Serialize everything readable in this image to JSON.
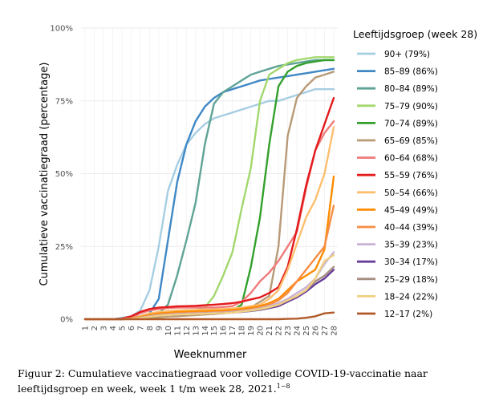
{
  "chart_data": {
    "type": "line",
    "ylabel": "Cumulatieve vaccinatiegraad (percentage)",
    "xlabel": "Weeknummer",
    "x": [
      1,
      2,
      3,
      4,
      5,
      6,
      7,
      8,
      9,
      10,
      11,
      12,
      13,
      14,
      15,
      16,
      17,
      18,
      19,
      20,
      21,
      22,
      23,
      24,
      25,
      26,
      27,
      28
    ],
    "ylim": [
      0,
      100
    ],
    "yticks": [
      0,
      25,
      50,
      75,
      100
    ],
    "ytick_labels": [
      "0%",
      "25%",
      "50%",
      "75%",
      "100%"
    ],
    "grid": true,
    "legend_title": "Leeftijdsgroep (week 28)",
    "legend_position": "right",
    "series": [
      {
        "name": "90+ (79%)",
        "color": "#a6cee3",
        "values": [
          0,
          0,
          0,
          0,
          0.5,
          1,
          3,
          10,
          25,
          44,
          53,
          60,
          64,
          67,
          69,
          70,
          71,
          72,
          73,
          74,
          75,
          75,
          76,
          77,
          78,
          79,
          79,
          79
        ]
      },
      {
        "name": "85–89 (86%)",
        "color": "#3f88c5",
        "values": [
          0,
          0,
          0,
          0,
          0.3,
          0.5,
          1,
          2,
          7,
          27,
          47,
          60,
          68,
          73,
          76,
          78,
          79,
          80,
          81,
          82,
          82.5,
          83,
          83.5,
          84,
          84.5,
          85,
          85.5,
          86
        ]
      },
      {
        "name": "80–84 (89%)",
        "color": "#5fa397",
        "values": [
          0,
          0,
          0,
          0,
          0.2,
          0.3,
          0.5,
          1,
          2,
          5,
          15,
          27,
          40,
          60,
          74,
          78,
          80,
          82,
          84,
          85,
          86,
          87,
          87.5,
          88,
          88.5,
          89,
          89,
          89
        ]
      },
      {
        "name": "75–79 (90%)",
        "color": "#a3d86e",
        "values": [
          0,
          0,
          0,
          0,
          0,
          0.2,
          0.3,
          0.5,
          0.8,
          1,
          1.5,
          2,
          3,
          4,
          8,
          15,
          23,
          38,
          52,
          75,
          84,
          86,
          88,
          89,
          89.5,
          90,
          90,
          90
        ]
      },
      {
        "name": "70–74 (89%)",
        "color": "#33a02c",
        "values": [
          0,
          0,
          0,
          0,
          0,
          0.2,
          0.3,
          0.5,
          0.7,
          1,
          1.2,
          1.4,
          1.6,
          1.8,
          2,
          2.5,
          3,
          5,
          18,
          35,
          60,
          80,
          85,
          87,
          88,
          88.5,
          89,
          89
        ]
      },
      {
        "name": "65–69 (85%)",
        "color": "#b89a76",
        "values": [
          0,
          0,
          0,
          0,
          0,
          0.2,
          0.3,
          0.5,
          0.7,
          0.9,
          1,
          1.2,
          1.4,
          1.6,
          1.8,
          2,
          2.5,
          3,
          4,
          6,
          8,
          25,
          63,
          76,
          80,
          83,
          84,
          85
        ]
      },
      {
        "name": "60–64 (68%)",
        "color": "#f07b7b",
        "values": [
          0,
          0,
          0,
          0,
          0,
          0.5,
          2,
          3,
          3.5,
          3.8,
          4,
          4,
          4,
          4,
          4,
          4.2,
          4.5,
          6,
          9,
          13,
          16,
          20,
          25,
          30,
          45,
          58,
          64,
          68
        ]
      },
      {
        "name": "55–59 (76%)",
        "color": "#e31a1c",
        "values": [
          0,
          0,
          0,
          0,
          0.2,
          1,
          2.5,
          3.5,
          4,
          4.2,
          4.4,
          4.5,
          4.6,
          4.8,
          5,
          5.2,
          5.5,
          6,
          6.8,
          7.5,
          9,
          11,
          18,
          31,
          46,
          58,
          67,
          76
        ]
      },
      {
        "name": "50–54 (66%)",
        "color": "#fdbf6f",
        "values": [
          0,
          0,
          0,
          0,
          0,
          0.3,
          1,
          2,
          2.5,
          2.8,
          3,
          3.1,
          3.2,
          3.3,
          3.4,
          3.5,
          3.7,
          4,
          4.5,
          5,
          7,
          10,
          17,
          26,
          35,
          41,
          50,
          66
        ]
      },
      {
        "name": "45–49 (49%)",
        "color": "#ff8c00",
        "values": [
          0,
          0,
          0,
          0,
          0,
          0.3,
          0.8,
          1.5,
          2,
          2.2,
          2.5,
          2.6,
          2.7,
          2.8,
          2.9,
          3,
          3.2,
          3.5,
          4,
          4.5,
          5.5,
          7,
          10,
          13,
          15,
          17,
          24,
          49
        ]
      },
      {
        "name": "40–44 (39%)",
        "color": "#f68d45",
        "values": [
          0,
          0,
          0,
          0,
          0,
          0.2,
          0.6,
          1.2,
          1.6,
          1.8,
          2,
          2.1,
          2.2,
          2.3,
          2.4,
          2.5,
          2.7,
          3,
          3.5,
          4,
          5,
          6.5,
          9,
          13,
          17,
          21,
          25,
          39
        ]
      },
      {
        "name": "35–39 (23%)",
        "color": "#cab2d6",
        "values": [
          0,
          0,
          0,
          0,
          0,
          0.2,
          0.5,
          1,
          1.4,
          1.6,
          1.8,
          1.9,
          2,
          2.1,
          2.2,
          2.3,
          2.5,
          2.8,
          3.2,
          3.7,
          4.5,
          5.5,
          7,
          9,
          11,
          14,
          19,
          23
        ]
      },
      {
        "name": "30–34 (17%)",
        "color": "#6a3d9a",
        "values": [
          0,
          0,
          0,
          0,
          0,
          0.2,
          0.4,
          0.8,
          1.2,
          1.4,
          1.6,
          1.7,
          1.8,
          1.9,
          2,
          2.1,
          2.3,
          2.5,
          2.8,
          3.2,
          3.8,
          4.5,
          6,
          7.5,
          9.5,
          12,
          14,
          17
        ]
      },
      {
        "name": "25–29 (18%)",
        "color": "#a68e81",
        "values": [
          0,
          0,
          0,
          0,
          0,
          0.2,
          0.4,
          0.8,
          1.2,
          1.4,
          1.6,
          1.7,
          1.8,
          1.9,
          2,
          2.1,
          2.3,
          2.6,
          2.9,
          3.3,
          4,
          5,
          6.5,
          8,
          10,
          13,
          15,
          18
        ]
      },
      {
        "name": "18–24 (22%)",
        "color": "#f0d080",
        "values": [
          0,
          0,
          0,
          0,
          0,
          0.2,
          0.4,
          0.8,
          1.2,
          1.4,
          1.6,
          1.7,
          1.8,
          1.9,
          2,
          2.1,
          2.3,
          2.6,
          3,
          3.5,
          4.2,
          5,
          6.5,
          8,
          10,
          14,
          20,
          22
        ]
      },
      {
        "name": "12–17 (2%)",
        "color": "#b15928",
        "values": [
          0,
          0,
          0,
          0,
          0,
          0,
          0,
          0,
          0,
          0,
          0,
          0,
          0,
          0,
          0,
          0,
          0,
          0,
          0,
          0,
          0,
          0,
          0.1,
          0.2,
          0.5,
          1,
          2,
          2.3
        ]
      }
    ]
  },
  "caption": {
    "line1": "Figuur 2: Cumulatieve vaccinatiegraad voor volledige COVID-19-vaccinatie naar",
    "line2": "leeftijdsgroep en week, week 1 t/m week 28, 2021.",
    "refs": "1−8"
  }
}
